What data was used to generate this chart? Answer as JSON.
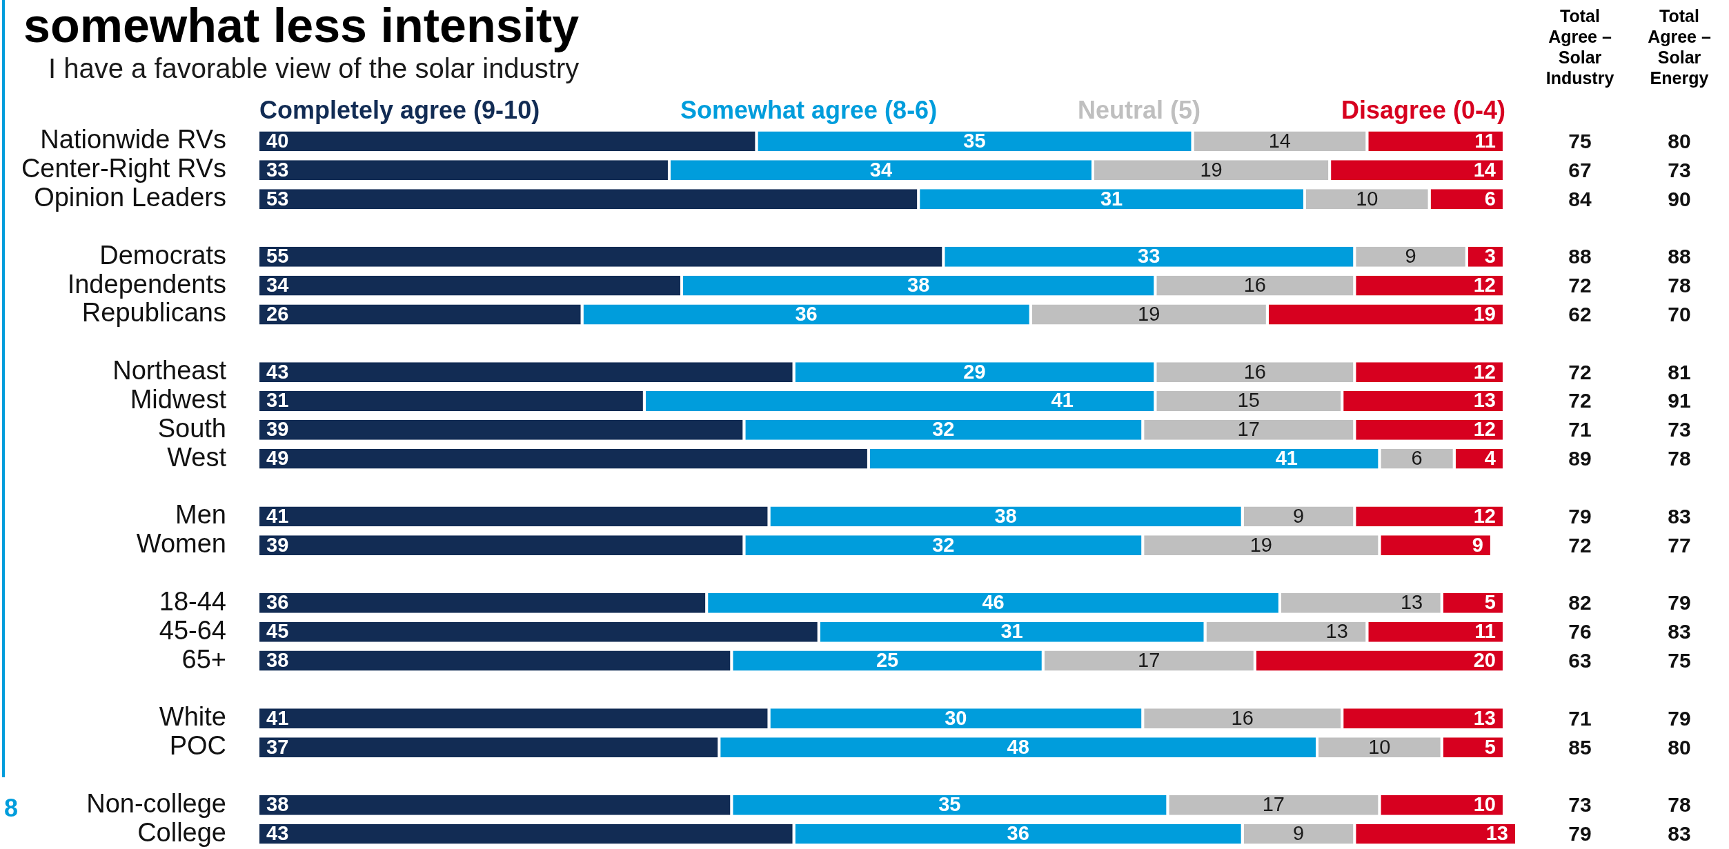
{
  "chart_data": {
    "type": "bar",
    "orientation": "horizontal",
    "stacked": true,
    "title": "somewhat less intensity",
    "subtitle": "I have a favorable view of the solar industry",
    "categories": [
      "Nationwide RVs",
      "Center-Right RVs",
      "Opinion Leaders",
      null,
      "Democrats",
      "Independents",
      "Republicans",
      null,
      "Northeast",
      "Midwest",
      "South",
      "West",
      null,
      "Men",
      "Women",
      null,
      "18-44",
      "45-64",
      "65+",
      null,
      "White",
      "POC",
      null,
      "Non-college",
      "College"
    ],
    "series": [
      {
        "name": "Completely agree (9-10)",
        "color": "#122c54",
        "values": [
          40,
          33,
          53,
          null,
          55,
          34,
          26,
          null,
          43,
          31,
          39,
          49,
          null,
          41,
          39,
          null,
          36,
          45,
          38,
          null,
          41,
          37,
          null,
          38,
          43
        ]
      },
      {
        "name": "Somewhat agree (8-6)",
        "color": "#009ddc",
        "values": [
          35,
          34,
          31,
          null,
          33,
          38,
          36,
          null,
          29,
          41,
          32,
          41,
          null,
          38,
          32,
          null,
          46,
          31,
          25,
          null,
          30,
          48,
          null,
          35,
          36
        ]
      },
      {
        "name": "Neutral (5)",
        "color": "#bfbfbf",
        "values": [
          14,
          19,
          10,
          null,
          9,
          16,
          19,
          null,
          16,
          15,
          17,
          6,
          null,
          9,
          19,
          null,
          13,
          13,
          17,
          null,
          16,
          10,
          null,
          17,
          9
        ]
      },
      {
        "name": "Disagree (0-4)",
        "color": "#d7001f",
        "values": [
          11,
          14,
          6,
          null,
          3,
          12,
          19,
          null,
          12,
          13,
          12,
          4,
          null,
          12,
          9,
          null,
          5,
          11,
          20,
          null,
          13,
          5,
          null,
          10,
          13
        ]
      }
    ],
    "xlim": [
      0,
      101
    ],
    "tick_labels": "y",
    "data_labels": true,
    "legend": "top",
    "annotations": [
      "Total Agree – Solar Industry",
      "75",
      "67",
      "84",
      "88",
      "72",
      "62",
      "72",
      "72",
      "71",
      "89",
      "79",
      "72",
      "82",
      "76",
      "63",
      "71",
      "85",
      "73",
      "79",
      "Total Agree – Solar Energy",
      "80",
      "73",
      "90",
      "88",
      "78",
      "70",
      "81",
      "91",
      "73",
      "78",
      "83",
      "77",
      "79",
      "83",
      "75",
      "79",
      "80",
      "78",
      "83",
      "8"
    ]
  }
}
